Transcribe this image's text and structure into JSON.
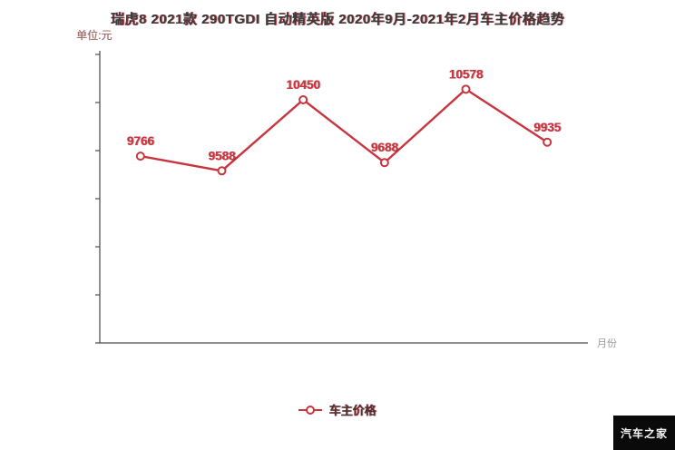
{
  "header": {
    "title": "瑞虎8 2021款 290TGDI 自动精英版 2020年9月-2021年2月车主价格趋势",
    "unit_label": "单位:元"
  },
  "legend": {
    "label": "车主价格"
  },
  "watermark": "汽车之家",
  "colors": {
    "line": "#c9353f",
    "data_label": "#d0303c",
    "axis": "#4a4a4a",
    "axis_text": "#999999"
  },
  "chart_data": {
    "type": "line",
    "title": "瑞虎8 2021款 290TGDI 自动精英版 2020年9月-2021年2月车主价格趋势",
    "xlabel": "月份",
    "ylabel": "单位:元",
    "ylim": [
      7500,
      11000
    ],
    "grid": false,
    "legend_position": "bottom",
    "series": [
      {
        "name": "车主价格",
        "values": [
          9766,
          9588,
          10450,
          9688,
          10578,
          9935
        ],
        "point_labels": [
          "9766",
          "9588",
          "10450",
          "9688",
          "10578",
          "9935"
        ]
      }
    ]
  }
}
